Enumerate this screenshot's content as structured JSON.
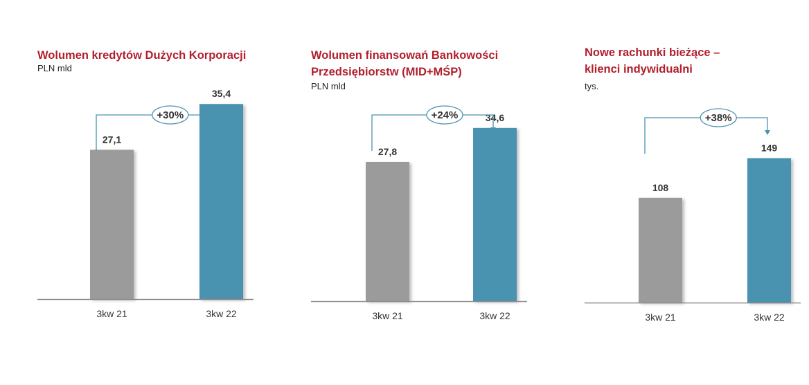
{
  "chart_data": [
    {
      "type": "bar",
      "title": [
        "Wolumen kredytów Dużych Korporacji"
      ],
      "unit": "PLN mld",
      "categories": [
        "3kw 21",
        "3kw 22"
      ],
      "values": [
        27.1,
        35.4
      ],
      "value_labels": [
        "27,1",
        "35,4"
      ],
      "change_label": "+30%",
      "ylim": [
        0,
        45
      ]
    },
    {
      "type": "bar",
      "title": [
        "Wolumen finansowań Bankowości",
        "Przedsiębiorstw (MID+MŚP)"
      ],
      "unit": "PLN mld",
      "categories": [
        "3kw 21",
        "3kw 22"
      ],
      "values": [
        27.8,
        34.6
      ],
      "value_labels": [
        "27,8",
        "34,6"
      ],
      "change_label": "+24%",
      "ylim": [
        0,
        45
      ]
    },
    {
      "type": "bar",
      "title": [
        "Nowe rachunki bieżące –",
        "klienci indywidualni"
      ],
      "unit": "tys.",
      "categories": [
        "3kw 21",
        "3kw 22"
      ],
      "values": [
        108,
        149
      ],
      "value_labels": [
        "108",
        "149"
      ],
      "change_label": "+38%",
      "ylim": [
        0,
        180
      ]
    }
  ],
  "colors": {
    "title": "#b21f2d",
    "bar_previous": "#9b9b9b",
    "bar_current": "#4a92b0",
    "arrow": "#4a92b0",
    "axis": "#8c8c8c"
  }
}
